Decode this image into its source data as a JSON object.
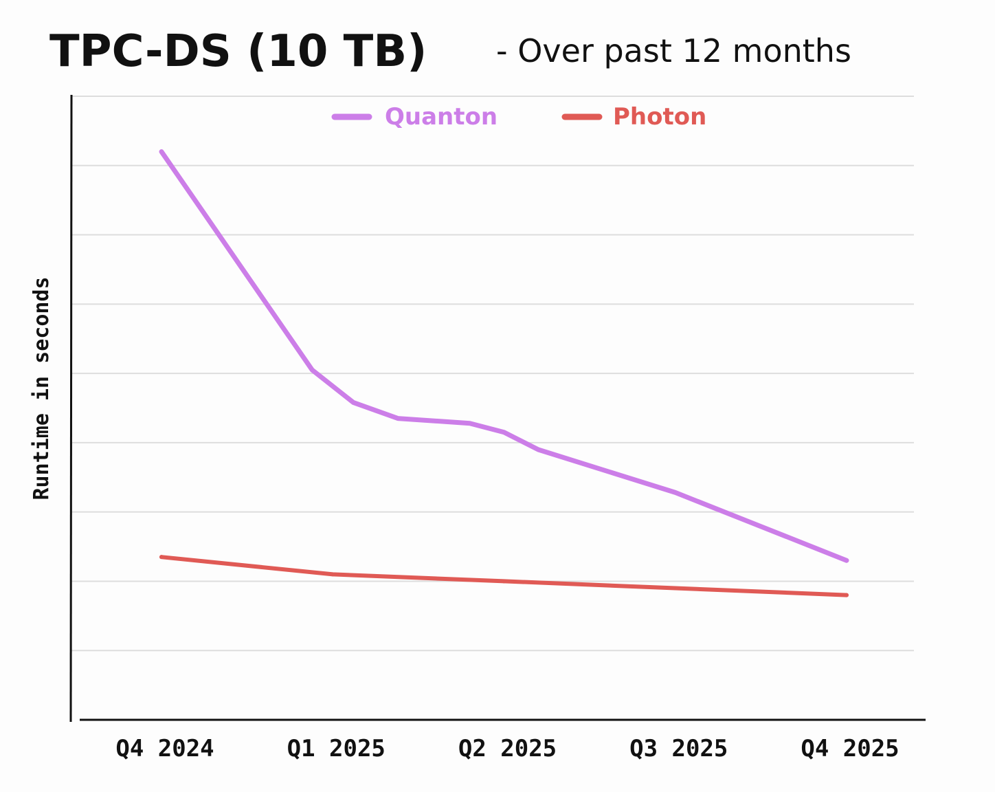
{
  "chart_data": {
    "type": "line",
    "title": "TPC-DS (10 TB)",
    "subtitle": "- Over past 12 months",
    "xlabel": "",
    "ylabel": "Runtime in seconds",
    "categories": [
      "Q4 2024",
      "Q1 2025",
      "Q2 2025",
      "Q3 2025",
      "Q4 2025"
    ],
    "x_range": [
      0,
      4
    ],
    "ylim": [
      0,
      9
    ],
    "grid": true,
    "y_tick_labels_shown": false,
    "legend_position": "top-center",
    "series": [
      {
        "name": "Quanton",
        "color": "#cc7ee8",
        "x": [
          0,
          0.88,
          1.12,
          1.38,
          1.8,
          2.0,
          2.2,
          3.0,
          4.0
        ],
        "values": [
          8.2,
          5.05,
          4.58,
          4.35,
          4.28,
          4.15,
          3.9,
          3.28,
          2.3
        ]
      },
      {
        "name": "Photon",
        "color": "#e05a55",
        "x": [
          0,
          1.0,
          2.0,
          3.0,
          4.0
        ],
        "values": [
          2.35,
          2.1,
          2.0,
          1.9,
          1.8
        ]
      }
    ]
  }
}
